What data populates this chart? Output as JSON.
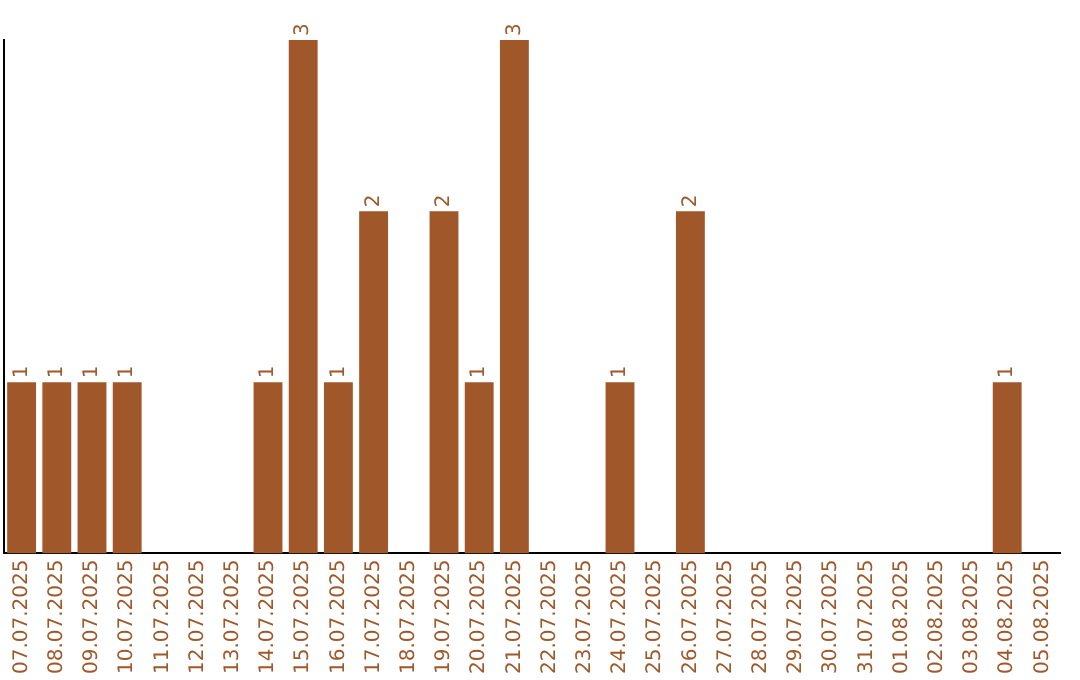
{
  "chart_data": {
    "type": "bar",
    "categories": [
      "07.07.2025",
      "08.07.2025",
      "09.07.2025",
      "10.07.2025",
      "11.07.2025",
      "12.07.2025",
      "13.07.2025",
      "14.07.2025",
      "15.07.2025",
      "16.07.2025",
      "17.07.2025",
      "18.07.2025",
      "19.07.2025",
      "20.07.2025",
      "21.07.2025",
      "22.07.2025",
      "23.07.2025",
      "24.07.2025",
      "25.07.2025",
      "26.07.2025",
      "27.07.2025",
      "28.07.2025",
      "29.07.2025",
      "30.07.2025",
      "31.07.2025",
      "01.08.2025",
      "02.08.2025",
      "03.08.2025",
      "04.08.2025",
      "05.08.2025"
    ],
    "values": [
      1,
      1,
      1,
      1,
      0,
      0,
      0,
      1,
      3,
      1,
      2,
      0,
      2,
      1,
      3,
      0,
      0,
      1,
      0,
      2,
      0,
      0,
      0,
      0,
      0,
      0,
      0,
      0,
      1,
      0
    ],
    "value_labels": [
      "1",
      "1",
      "1",
      "1",
      null,
      null,
      null,
      "1",
      "3",
      "1",
      "2",
      null,
      "2",
      "1",
      "3",
      null,
      null,
      "1",
      null,
      "2",
      null,
      null,
      null,
      null,
      null,
      null,
      null,
      null,
      "1",
      null
    ],
    "color": "#a0582a",
    "ylim": [
      0,
      3
    ],
    "grid": false,
    "legend": false,
    "tick_labels": "x"
  }
}
